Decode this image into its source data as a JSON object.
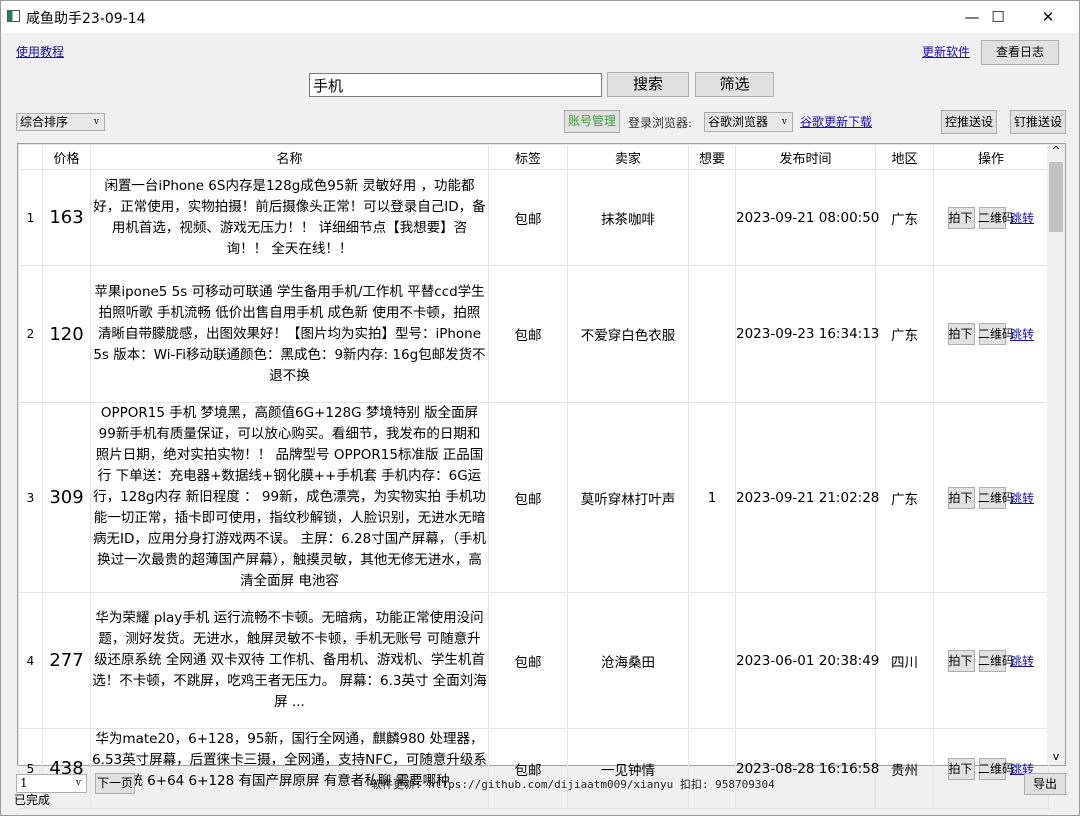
{
  "window": {
    "title": "咸鱼助手23-09-14",
    "minimize": "—",
    "maximize": "☐",
    "close": "✕"
  },
  "top": {
    "tutorial_link": "使用教程",
    "update_link": "更新软件",
    "view_log": "查看日志"
  },
  "search": {
    "value": "手机",
    "search_btn": "搜索",
    "filter_btn": "筛选"
  },
  "toolbar": {
    "sort": "综合排序",
    "account_btn": "账号管理",
    "browser_label": "登录浏览器:",
    "browser": "谷歌浏览器",
    "chrome_link": "谷歌更新下载",
    "push1": "控推送设",
    "push2": "钉推送设"
  },
  "table": {
    "headers": [
      "",
      "价格",
      "名称",
      "标签",
      "卖家",
      "想要",
      "发布时间",
      "地区",
      "操作"
    ],
    "action_buy": "拍下",
    "action_qr": "二维码",
    "action_jump": "跳转",
    "rows": [
      {
        "idx": "1",
        "price": "163",
        "name": "闲置一台iPhone 6S内存是128g成色95新 灵敏好用 ，功能都好，正常使用，实物拍摄！前后摄像头正常！可以登录自己ID，备用机首选，视频、游戏无压力！！ 详细细节点【我想要】咨询！！ 全天在线！！",
        "tag": "包邮",
        "seller": "抹茶咖啡",
        "want": "",
        "time": "2023-09-21 08:00:50",
        "region": "广东"
      },
      {
        "idx": "2",
        "price": "120",
        "name": "苹果ipone5 5s 可移动可联通 学生备用手机/工作机 平替ccd学生拍照听歌  手机流畅  低价出售自用手机  成色新 使用不卡顿，拍照清晰自带朦胧感，出图效果好！【图片均为实拍】型号：iPhone  5s 版本：Wi-Fi移动联通颜色：黑成色：9新内存: 16g包邮发货不退不换",
        "tag": "包邮",
        "seller": "不爱穿白色衣服",
        "want": "",
        "time": "2023-09-23 16:34:13",
        "region": "广东"
      },
      {
        "idx": "3",
        "price": "309",
        "name": "OPPOR15 手机 梦境黑，高颜值6G+128G 梦境特别 版全面屏 99新手机有质量保证，可以放心购买。看细节，我发布的日期和照片日期，绝对实拍实物！！      品牌型号 OPPOR15标准版    正品国行        下单送：充电器+数据线+钢化膜++手机套     手机内存：6G运行，128g内存       新旧程度 ： 99新，成色漂亮，为实物实拍      手机功能一切正常，插卡即可使用，指纹秒解锁，人脸识别，无进水无暗病无ID，应用分身打游戏两不误。      主屏：6.28寸国产屏幕，（手机换过一次最贵的超薄国产屏幕），触摸灵敏，其他无修无进水，高清全面屏     电池容",
        "tag": "包邮",
        "seller": "莫听穿林打叶声",
        "want": "1",
        "time": "2023-09-21 21:02:28",
        "region": "广东"
      },
      {
        "idx": "4",
        "price": "277",
        "name": "华为荣耀 play手机 运行流畅不卡顿。无暗病，功能正常使用没问题，测好发货。无进水，触屏灵敏不卡顿，手机无账号 可随意升级还原系统  全网通  双卡双待  工作机、备用机、游戏机、学生机首选！不卡顿，不跳屏，吃鸡王者无压力。  屏幕：6.3英寸 全面刘海屏 ...",
        "tag": "包邮",
        "seller": "沧海桑田",
        "want": "",
        "time": "2023-06-01 20:38:49",
        "region": "四川"
      },
      {
        "idx": "5",
        "price": "438",
        "name": "华为mate20，6+128，95新，国行全网通，麒麟980 处理器，6.53英寸屏幕，后置徕卡三摄，全网通，支持NFC，可随意升级系统 6+64   6+128 有国产屏原屏 有意者私聊 需要哪种",
        "tag": "包邮",
        "seller": "一见钟情",
        "want": "",
        "time": "2023-08-28 16:16:58",
        "region": "贵州"
      }
    ]
  },
  "bottom": {
    "page": "1",
    "next_btn": "下一页",
    "footer": "软件更新: https://github.com/dijiaatm009/xianyu   扣扣: 958709304",
    "export_btn": "导出",
    "status": "已完成"
  },
  "scroll": {
    "up": "^",
    "down": "v"
  }
}
